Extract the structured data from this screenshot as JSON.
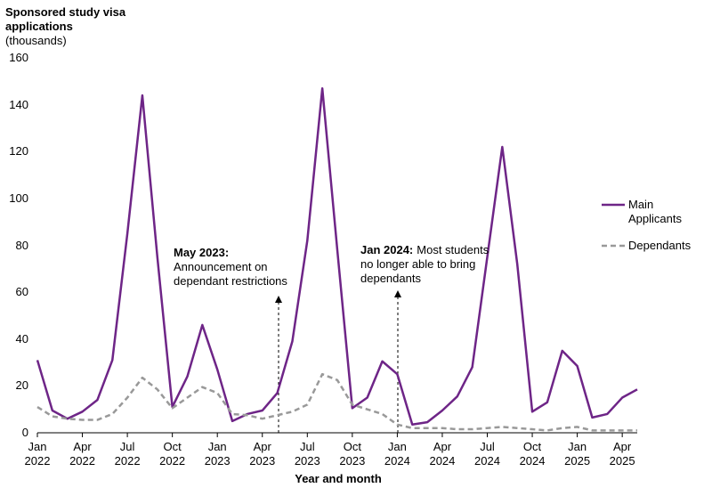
{
  "chart_data": {
    "type": "line",
    "y_label": "Sponsored study visa applications",
    "y_unit": "(thousands)",
    "x_label": "Year and month",
    "categories": [
      "Jan\n2022",
      null,
      null,
      "Apr\n2022",
      null,
      null,
      "Jul\n2022",
      null,
      null,
      "Oct\n2022",
      null,
      null,
      "Jan\n2023",
      null,
      null,
      "Apr\n2023",
      null,
      null,
      "Jul\n2023",
      null,
      null,
      "Oct\n2023",
      null,
      null,
      "Jan\n2024",
      null,
      null,
      "Apr\n2024",
      null,
      null,
      "Jul\n2024",
      null,
      null,
      "Oct\n2024",
      null,
      null,
      "Jan\n2025",
      null,
      null,
      "Apr\n2025",
      null
    ],
    "series": [
      {
        "name": "Main Applicants",
        "color": "#6e2587",
        "dash": false,
        "values": [
          31,
          9.5,
          6,
          9,
          14,
          31,
          85,
          144,
          75,
          11,
          24,
          46,
          27,
          5,
          8,
          9.5,
          17,
          39,
          82,
          147,
          78,
          10.5,
          15,
          30.5,
          25,
          3.5,
          4.5,
          9.5,
          15.5,
          28,
          75,
          122,
          72,
          9,
          13,
          35,
          28.5,
          6.5,
          8,
          15,
          18.5
        ]
      },
      {
        "name": "Dependants",
        "color": "#999999",
        "dash": true,
        "values": [
          11,
          7,
          6,
          5.5,
          5.5,
          8,
          15,
          23.5,
          18.5,
          10.5,
          15,
          19.5,
          17,
          8,
          7.5,
          6,
          7.5,
          9,
          12,
          25,
          22.5,
          12,
          10,
          8,
          3.5,
          2,
          2,
          2,
          1.5,
          1.5,
          2,
          2.5,
          2,
          1.5,
          1,
          2,
          2.5,
          1,
          1,
          1,
          1
        ]
      }
    ],
    "ylim": [
      0,
      160
    ],
    "yticks": [
      0,
      20,
      40,
      60,
      80,
      100,
      120,
      140,
      160
    ],
    "grid": false,
    "legend": "right",
    "annotations": [
      {
        "heading": "May 2023:",
        "text": "Announcement on dependant restrictions"
      },
      {
        "heading": "Jan 2024:",
        "text": "Most students no longer able to bring dependants"
      }
    ]
  }
}
